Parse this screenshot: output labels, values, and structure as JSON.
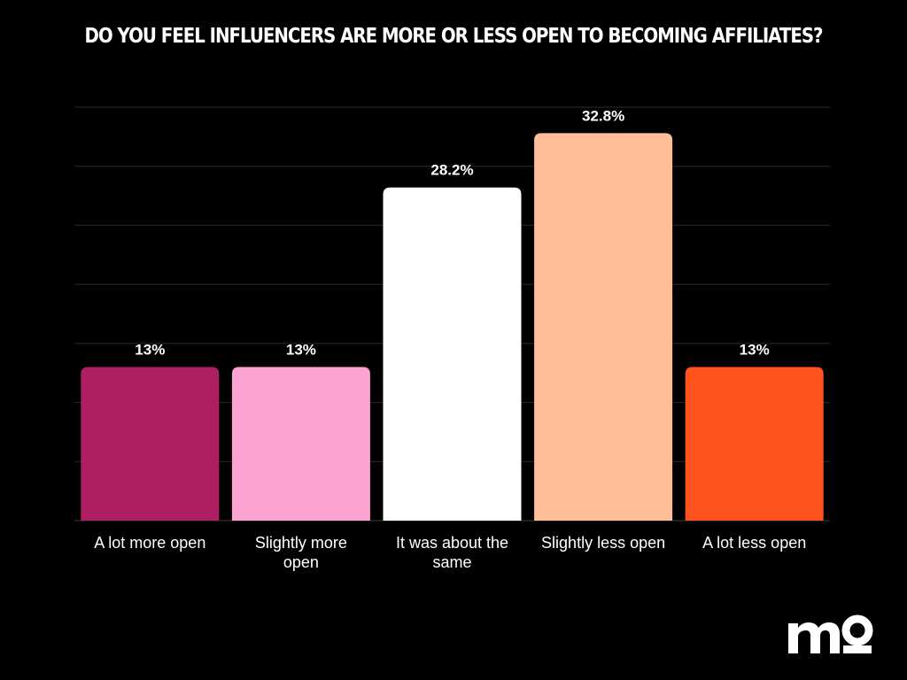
{
  "chart_data": {
    "type": "bar",
    "title": "DO YOU FEEL INFLUENCERS ARE MORE OR LESS OPEN TO BECOMING AFFILIATES?",
    "xlabel": "",
    "ylabel": "",
    "ylim": [
      0,
      35
    ],
    "grid": true,
    "categories": [
      "A lot more open",
      "Slightly more open",
      "It was about the same",
      "Slightly less open",
      "A lot less open"
    ],
    "category_lines": [
      [
        "A lot more open"
      ],
      [
        "Slightly more",
        "open"
      ],
      [
        "It was about the",
        "same"
      ],
      [
        "Slightly less open"
      ],
      [
        "A lot less open"
      ]
    ],
    "values": [
      13,
      13,
      28.2,
      32.8,
      13
    ],
    "value_labels": [
      "13%",
      "13%",
      "28.2%",
      "32.8%",
      "13%"
    ],
    "colors": [
      "#AD1F62",
      "#FCA3D2",
      "#FFFFFF",
      "#FFBD98",
      "#FF531D"
    ]
  },
  "logo": {
    "name": "mo-logo-icon",
    "color": "#ffffff"
  }
}
